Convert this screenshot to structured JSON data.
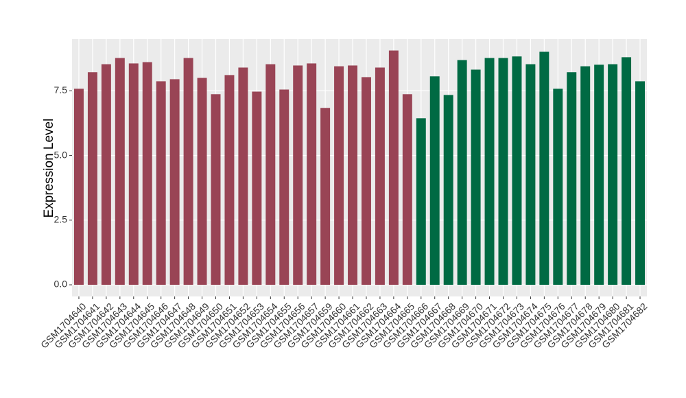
{
  "chart_data": {
    "type": "bar",
    "y_label": "Expression Level",
    "categories": [
      "GSM1704640",
      "GSM1704641",
      "GSM1704642",
      "GSM1704643",
      "GSM1704644",
      "GSM1704645",
      "GSM1704646",
      "GSM1704647",
      "GSM1704648",
      "GSM1704649",
      "GSM1704650",
      "GSM1704651",
      "GSM1704652",
      "GSM1704653",
      "GSM1704654",
      "GSM1704655",
      "GSM1704656",
      "GSM1704657",
      "GSM1704659",
      "GSM1704660",
      "GSM1704661",
      "GSM1704662",
      "GSM1704663",
      "GSM1704664",
      "GSM1704665",
      "GSM1704666",
      "GSM1704667",
      "GSM1704668",
      "GSM1704669",
      "GSM1704670",
      "GSM1704671",
      "GSM1704672",
      "GSM1704673",
      "GSM1704674",
      "GSM1704675",
      "GSM1704676",
      "GSM1704677",
      "GSM1704678",
      "GSM1704679",
      "GSM1704680",
      "GSM1704681",
      "GSM1704682"
    ],
    "values": [
      7.58,
      8.22,
      8.53,
      8.77,
      8.56,
      8.61,
      7.87,
      7.95,
      8.77,
      8.0,
      7.37,
      8.11,
      8.4,
      7.47,
      8.53,
      7.55,
      8.48,
      8.56,
      6.84,
      8.45,
      8.48,
      8.03,
      8.4,
      9.06,
      7.37,
      6.44,
      8.06,
      7.34,
      8.69,
      8.32,
      8.77,
      8.77,
      8.83,
      8.53,
      9.01,
      7.58,
      8.22,
      8.45,
      8.51,
      8.53,
      8.8,
      7.87
    ],
    "colors": [
      "#994455",
      "#994455",
      "#994455",
      "#994455",
      "#994455",
      "#994455",
      "#994455",
      "#994455",
      "#994455",
      "#994455",
      "#994455",
      "#994455",
      "#994455",
      "#994455",
      "#994455",
      "#994455",
      "#994455",
      "#994455",
      "#994455",
      "#994455",
      "#994455",
      "#994455",
      "#994455",
      "#994455",
      "#994455",
      "#006a43",
      "#006a43",
      "#006a43",
      "#006a43",
      "#006a43",
      "#006a43",
      "#006a43",
      "#006a43",
      "#006a43",
      "#006a43",
      "#006a43",
      "#006a43",
      "#006a43",
      "#006a43",
      "#006a43",
      "#006a43",
      "#006a43"
    ],
    "ylim": [
      -0.45,
      9.5
    ],
    "yticks": [
      {
        "value": 0,
        "label": "0.0"
      },
      {
        "value": 2.5,
        "label": "2.5"
      },
      {
        "value": 5,
        "label": "5.0"
      },
      {
        "value": 7.5,
        "label": "7.5"
      }
    ],
    "grid": true
  }
}
